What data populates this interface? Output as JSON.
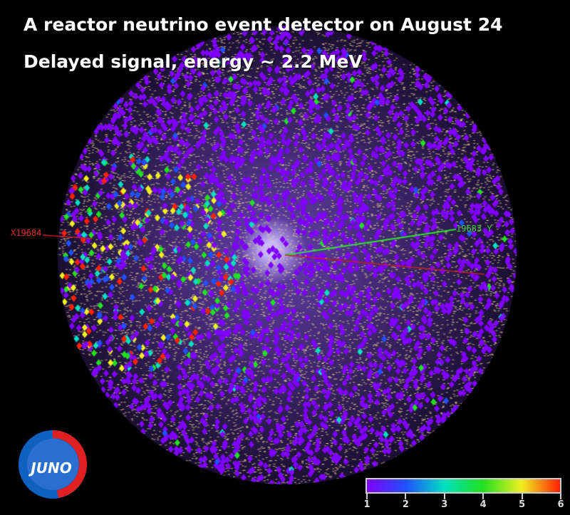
{
  "title_line1": "A reactor neutrino event detector on August 24",
  "title_line2": "Delayed signal, energy ~ 2.2 MeV",
  "axes": {
    "x_label": "X",
    "y_label": "Y",
    "x_value": "19684",
    "y_value": "19683"
  },
  "logo_text": "JUNO",
  "colorbar": {
    "ticks": [
      "1",
      "2",
      "3",
      "4",
      "5",
      "6"
    ],
    "colors": [
      "#8000ff",
      "#2050ff",
      "#00e0c0",
      "#20e020",
      "#f0f020",
      "#ff2000"
    ]
  }
}
